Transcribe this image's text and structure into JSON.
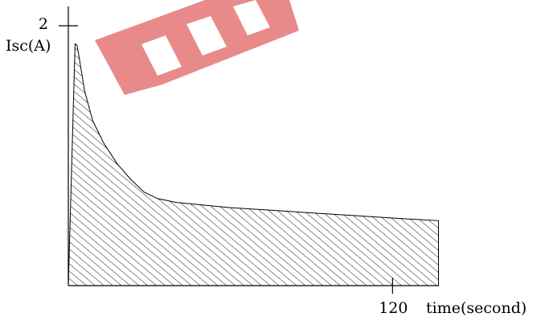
{
  "chart_data": {
    "type": "area",
    "title": "",
    "xlabel": "time(second)",
    "ylabel": "Isc(A)",
    "xlim": [
      0,
      137
    ],
    "ylim": [
      0,
      2
    ],
    "x_ticks": [
      {
        "value": 120,
        "label": "120"
      }
    ],
    "y_ticks": [
      {
        "value": 2,
        "label": "2"
      }
    ],
    "grid": false,
    "legend": "none",
    "fill_pattern": "diagonal-hatch",
    "x": [
      0,
      2.5,
      3.2,
      4,
      6,
      9,
      13,
      18,
      23,
      28,
      33,
      40,
      50,
      60,
      75,
      90,
      105,
      120,
      137
    ],
    "y": [
      0,
      1.86,
      1.85,
      1.76,
      1.5,
      1.27,
      1.1,
      0.94,
      0.82,
      0.72,
      0.67,
      0.64,
      0.62,
      0.6,
      0.58,
      0.56,
      0.54,
      0.52,
      0.5
    ]
  },
  "watermark": {
    "color": "#e88a8a"
  }
}
